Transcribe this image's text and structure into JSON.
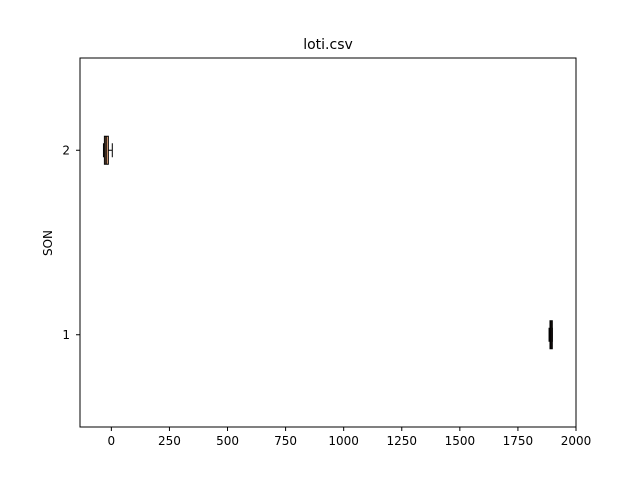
{
  "chart_data": {
    "type": "boxplot",
    "orientation": "horizontal",
    "title": "loti.csv",
    "xlabel": "",
    "ylabel": "SON",
    "xlim": [
      -135,
      2000
    ],
    "ylim": [
      0.5,
      2.5
    ],
    "x_ticks": [
      0,
      250,
      500,
      750,
      1000,
      1250,
      1500,
      1750,
      2000
    ],
    "y_ticks": [
      1,
      2
    ],
    "grid": false,
    "box_color": "#e8a97e",
    "median_color": "#000000",
    "boxes": [
      {
        "position": 1,
        "whisker_low": 1884,
        "q1": 1888,
        "median": 1893,
        "q3": 1898,
        "whisker_high": 1898
      },
      {
        "position": 2,
        "whisker_low": -34,
        "q1": -30,
        "median": -23,
        "q3": -13,
        "whisker_high": 4
      }
    ]
  }
}
